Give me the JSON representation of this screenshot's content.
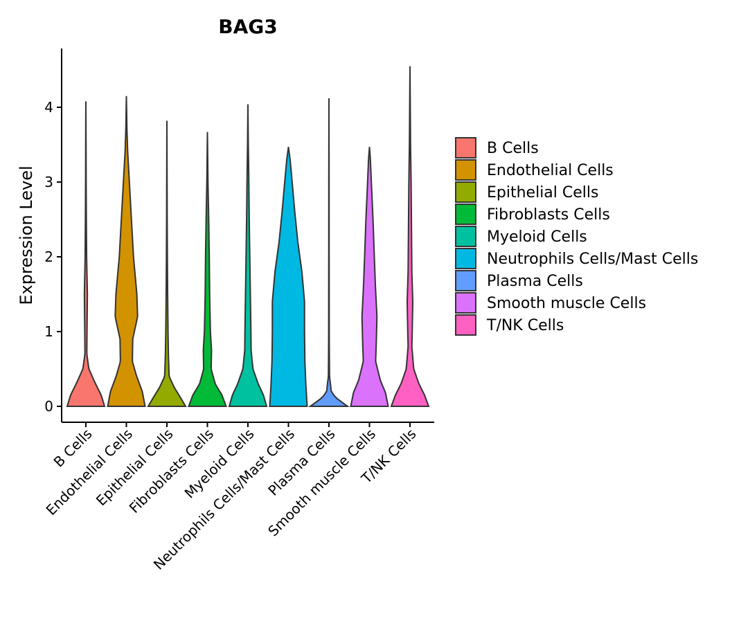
{
  "chart_data": {
    "type": "violin",
    "title": "BAG3",
    "xlabel": "",
    "ylabel": "Expression Level",
    "ylim": [
      -0.22,
      4.9
    ],
    "yticks": [
      0,
      1,
      2,
      3,
      4
    ],
    "categories": [
      "B Cells",
      "Endothelial Cells",
      "Epithelial Cells",
      "Fibroblasts Cells",
      "Myeloid Cells",
      "Neutrophils Cells/Mast Cells",
      "Plasma Cells",
      "Smooth muscle Cells",
      "T/NK Cells"
    ],
    "colors": [
      "#F8766D",
      "#D39200",
      "#93AA00",
      "#00BA38",
      "#00C19F",
      "#00B9E3",
      "#619CFF",
      "#DB72FB",
      "#FF61C3"
    ],
    "max_values": [
      4.08,
      4.15,
      3.82,
      3.67,
      4.04,
      3.47,
      4.12,
      3.47,
      4.55
    ],
    "profiles": [
      [
        [
          0,
          1.0
        ],
        [
          0.15,
          0.82
        ],
        [
          0.3,
          0.52
        ],
        [
          0.5,
          0.16
        ],
        [
          0.7,
          0.05
        ],
        [
          1.0,
          0.06
        ],
        [
          1.5,
          0.08
        ],
        [
          2.0,
          0.04
        ],
        [
          2.5,
          0.025
        ],
        [
          3.0,
          0.015
        ],
        [
          3.5,
          0.01
        ],
        [
          4.08,
          0.0
        ]
      ],
      [
        [
          0,
          1.0
        ],
        [
          0.2,
          0.85
        ],
        [
          0.4,
          0.55
        ],
        [
          0.6,
          0.32
        ],
        [
          0.9,
          0.34
        ],
        [
          1.2,
          0.6
        ],
        [
          1.5,
          0.56
        ],
        [
          2.0,
          0.38
        ],
        [
          2.5,
          0.27
        ],
        [
          3.0,
          0.16
        ],
        [
          3.4,
          0.07
        ],
        [
          3.7,
          0.03
        ],
        [
          4.15,
          0.0
        ]
      ],
      [
        [
          0,
          1.0
        ],
        [
          0.12,
          0.72
        ],
        [
          0.25,
          0.4
        ],
        [
          0.4,
          0.12
        ],
        [
          0.7,
          0.08
        ],
        [
          1.0,
          0.06
        ],
        [
          1.5,
          0.04
        ],
        [
          2.0,
          0.025
        ],
        [
          2.5,
          0.015
        ],
        [
          3.0,
          0.01
        ],
        [
          3.82,
          0.0
        ]
      ],
      [
        [
          0,
          1.0
        ],
        [
          0.15,
          0.78
        ],
        [
          0.3,
          0.42
        ],
        [
          0.5,
          0.2
        ],
        [
          0.75,
          0.22
        ],
        [
          1.0,
          0.16
        ],
        [
          1.5,
          0.12
        ],
        [
          2.0,
          0.1
        ],
        [
          2.5,
          0.07
        ],
        [
          3.0,
          0.03
        ],
        [
          3.67,
          0.0
        ]
      ],
      [
        [
          0,
          1.0
        ],
        [
          0.15,
          0.83
        ],
        [
          0.3,
          0.55
        ],
        [
          0.5,
          0.27
        ],
        [
          0.75,
          0.17
        ],
        [
          1.0,
          0.16
        ],
        [
          1.5,
          0.13
        ],
        [
          2.0,
          0.1
        ],
        [
          2.5,
          0.07
        ],
        [
          3.0,
          0.05
        ],
        [
          3.5,
          0.02
        ],
        [
          4.04,
          0.0
        ]
      ],
      [
        [
          0,
          1.0
        ],
        [
          0.3,
          0.93
        ],
        [
          0.6,
          0.88
        ],
        [
          1.0,
          0.86
        ],
        [
          1.4,
          0.86
        ],
        [
          1.8,
          0.72
        ],
        [
          2.2,
          0.5
        ],
        [
          2.6,
          0.34
        ],
        [
          3.0,
          0.2
        ],
        [
          3.3,
          0.09
        ],
        [
          3.47,
          0.0
        ]
      ],
      [
        [
          0,
          1.0
        ],
        [
          0.05,
          0.72
        ],
        [
          0.12,
          0.35
        ],
        [
          0.2,
          0.12
        ],
        [
          0.28,
          0.09
        ],
        [
          0.4,
          0.03
        ],
        [
          0.7,
          0.02
        ],
        [
          1.0,
          0.015
        ],
        [
          2.0,
          0.01
        ],
        [
          3.0,
          0.008
        ],
        [
          4.12,
          0.0
        ]
      ],
      [
        [
          0,
          1.0
        ],
        [
          0.18,
          0.86
        ],
        [
          0.35,
          0.58
        ],
        [
          0.6,
          0.33
        ],
        [
          0.9,
          0.37
        ],
        [
          1.2,
          0.4
        ],
        [
          1.6,
          0.32
        ],
        [
          2.0,
          0.26
        ],
        [
          2.5,
          0.19
        ],
        [
          3.0,
          0.1
        ],
        [
          3.3,
          0.05
        ],
        [
          3.47,
          0.0
        ]
      ],
      [
        [
          0,
          1.0
        ],
        [
          0.15,
          0.78
        ],
        [
          0.3,
          0.48
        ],
        [
          0.5,
          0.2
        ],
        [
          0.8,
          0.1
        ],
        [
          1.0,
          0.12
        ],
        [
          1.4,
          0.15
        ],
        [
          1.8,
          0.1
        ],
        [
          2.4,
          0.08
        ],
        [
          3.0,
          0.06
        ],
        [
          3.5,
          0.03
        ],
        [
          4.55,
          0.0
        ]
      ]
    ],
    "legend": {
      "position": "right",
      "entries": [
        "B Cells",
        "Endothelial Cells",
        "Epithelial Cells",
        "Fibroblasts Cells",
        "Myeloid Cells",
        "Neutrophils Cells/Mast Cells",
        "Plasma Cells",
        "Smooth muscle Cells",
        "T/NK Cells"
      ]
    }
  }
}
